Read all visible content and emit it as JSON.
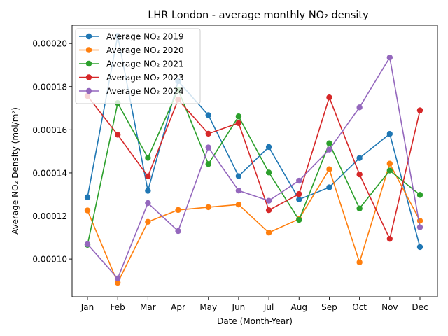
{
  "chart_data": {
    "type": "line",
    "title": "LHR London - average monthly NO₂ density",
    "xlabel": "Date (Month-Year)",
    "ylabel": "Average NO₂ Density (mol/m²)",
    "categories": [
      "Jan",
      "Feb",
      "Mar",
      "Apr",
      "May",
      "Jun",
      "Jul",
      "Aug",
      "Sep",
      "Oct",
      "Nov",
      "Dec"
    ],
    "ylim": [
      8.25e-05,
      0.0002085
    ],
    "yticks": [
      "0.00010",
      "0.00012",
      "0.00014",
      "0.00016",
      "0.00018",
      "0.00020"
    ],
    "ytick_values": [
      0.0001,
      0.00012,
      0.00014,
      0.00016,
      0.00018,
      0.0002
    ],
    "grid": false,
    "legend_position": "top-left",
    "series": [
      {
        "name": "Average NO₂ 2019",
        "color": "#1f77b4",
        "values": [
          0.0001287,
          0.0002035,
          0.0001317,
          0.0001825,
          0.0001668,
          0.0001385,
          0.000152,
          0.0001277,
          0.0001333,
          0.0001469,
          0.0001581,
          0.0001056
        ]
      },
      {
        "name": "Average NO₂ 2020",
        "color": "#ff7f0e",
        "values": [
          0.0001226,
          8.9e-05,
          0.0001173,
          0.0001228,
          0.0001241,
          0.0001253,
          0.0001123,
          0.0001186,
          0.0001417,
          9.85e-05,
          0.0001443,
          0.0001178
        ]
      },
      {
        "name": "Average NO₂ 2021",
        "color": "#2ca02c",
        "values": [
          0.0001066,
          0.0001724,
          0.000147,
          0.0001786,
          0.0001441,
          0.0001662,
          0.0001402,
          0.0001182,
          0.0001537,
          0.0001235,
          0.0001411,
          0.0001298
        ]
      },
      {
        "name": "Average NO₂ 2023",
        "color": "#d62728",
        "values": [
          0.0001757,
          0.0001577,
          0.0001384,
          0.000174,
          0.0001582,
          0.0001631,
          0.0001227,
          0.0001302,
          0.000175,
          0.0001393,
          0.0001094,
          0.000169
        ]
      },
      {
        "name": "Average NO₂ 2024",
        "color": "#9467bd",
        "values": [
          0.0001069,
          9.1e-05,
          0.000126,
          0.000113,
          0.0001518,
          0.0001318,
          0.0001271,
          0.0001364,
          0.0001508,
          0.0001704,
          0.0001935,
          0.0001148
        ]
      }
    ]
  }
}
